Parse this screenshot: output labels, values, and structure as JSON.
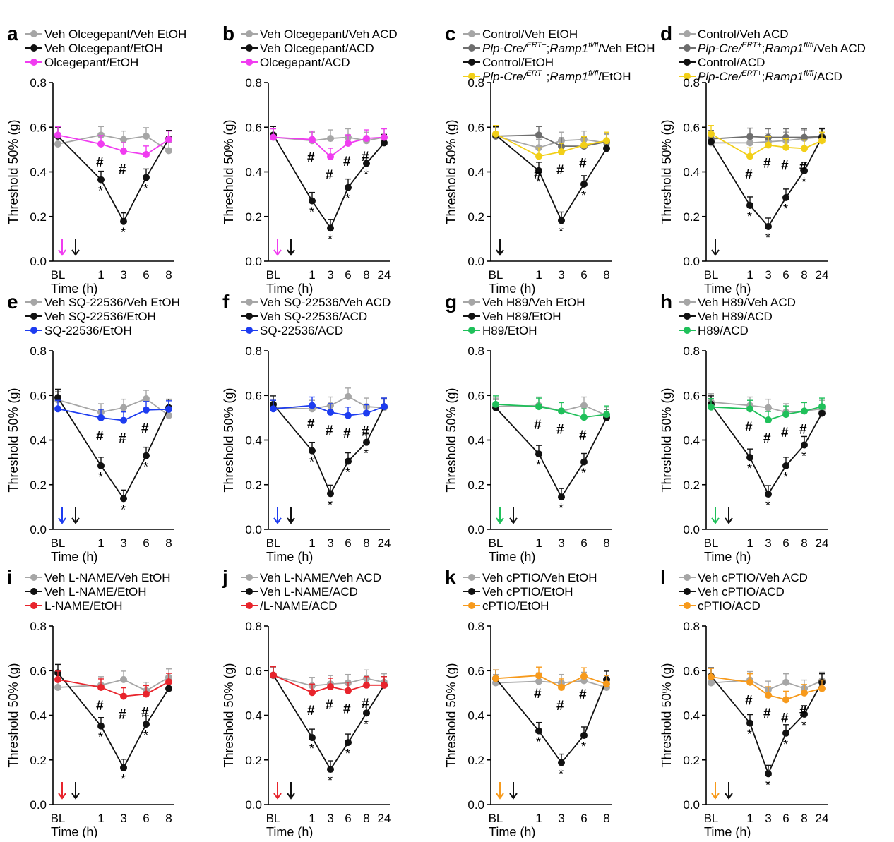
{
  "figure": {
    "ylabel": "Threshold 50% (g)",
    "xlabel": "Time (h)",
    "yticks": [
      "0.0",
      "0.2",
      "0.4",
      "0.6",
      "0.8"
    ],
    "ylim": [
      0,
      0.8
    ],
    "colors": {
      "grey": "#a6a6a6",
      "darkgrey": "#6e6e6e",
      "black": "#111111",
      "magenta": "#f03cf0",
      "yellow": "#f2cf18",
      "blue": "#1d3cf0",
      "green": "#1fc05a",
      "red": "#e8242c",
      "orange": "#f79a1c"
    }
  },
  "chart_data": [
    {
      "type": "line",
      "panel": "a",
      "categories": [
        "BL",
        "1",
        "3",
        "6",
        "8"
      ],
      "arrows": [
        "magenta",
        "black"
      ],
      "series": [
        {
          "name": "Veh Olcegepant/Veh EtOH",
          "color": "grey",
          "values": [
            0.525,
            0.565,
            0.545,
            0.56,
            0.495
          ]
        },
        {
          "name": "Veh Olcegepant/EtOH",
          "color": "black",
          "values": [
            0.56,
            0.365,
            0.178,
            0.375,
            0.548
          ]
        },
        {
          "name": "Olcegepant/EtOH",
          "color": "magenta",
          "values": [
            0.565,
            0.525,
            0.493,
            0.478,
            0.545
          ]
        }
      ],
      "hash": [
        1,
        2
      ],
      "star": [
        1,
        2,
        3
      ]
    },
    {
      "type": "line",
      "panel": "b",
      "categories": [
        "BL",
        "1",
        "3",
        "6",
        "8",
        "24"
      ],
      "arrows": [
        "magenta",
        "black"
      ],
      "series": [
        {
          "name": "Veh Olcegepant/Veh ACD",
          "color": "grey",
          "values": [
            0.555,
            0.54,
            0.55,
            0.555,
            0.54,
            0.555
          ]
        },
        {
          "name": "Veh Olcegepant/ACD",
          "color": "black",
          "values": [
            0.565,
            0.27,
            0.148,
            0.33,
            0.438,
            0.53
          ]
        },
        {
          "name": "Olcegepant/ACD",
          "color": "magenta",
          "values": [
            0.555,
            0.545,
            0.468,
            0.528,
            0.55,
            0.555
          ]
        }
      ],
      "hash": [
        1,
        2,
        3,
        4
      ],
      "star": [
        1,
        2,
        3,
        4
      ]
    },
    {
      "type": "line",
      "panel": "c",
      "categories": [
        "BL",
        "1",
        "3",
        "6",
        "8"
      ],
      "arrows": [
        "black"
      ],
      "series": [
        {
          "name": "Control/Veh EtOH",
          "color": "grey",
          "values": [
            0.56,
            0.508,
            0.54,
            0.545,
            0.53
          ]
        },
        {
          "name": "Plp-Cre/ERT+;Ramp1fl/fl/Veh EtOH",
          "color": "darkgrey",
          "values": [
            0.56,
            0.565,
            0.515,
            0.515,
            0.535
          ],
          "label": {
            "pre": "",
            "it1": "Plp-Cre/",
            "sup1": "ERT+",
            "mid": ";",
            "it2": "Ramp1",
            "sup2": "fl/fl",
            "post": "/Veh EtOH"
          }
        },
        {
          "name": "Control/EtOH",
          "color": "black",
          "values": [
            0.565,
            0.405,
            0.182,
            0.345,
            0.505
          ]
        },
        {
          "name": "Plp-Cre/ERT+;Ramp1fl/fl/EtOH",
          "color": "yellow",
          "values": [
            0.57,
            0.47,
            0.49,
            0.52,
            0.54
          ],
          "label": {
            "pre": "",
            "it1": "Plp-Cre/",
            "sup1": "ERT+",
            "mid": ";",
            "it2": "Ramp1",
            "sup2": "fl/fl",
            "post": "/EtOH"
          }
        }
      ],
      "hash": [
        1,
        2,
        3
      ],
      "star": [
        1,
        2,
        3
      ]
    },
    {
      "type": "line",
      "panel": "d",
      "categories": [
        "BL",
        "1",
        "3",
        "6",
        "8",
        "24"
      ],
      "arrows": [
        "black"
      ],
      "series": [
        {
          "name": "Control/Veh ACD",
          "color": "grey",
          "values": [
            0.53,
            0.53,
            0.535,
            0.54,
            0.55,
            0.555
          ]
        },
        {
          "name": "Plp-Cre/ERT+;Ramp1fl/fl/Veh ACD",
          "color": "darkgrey",
          "values": [
            0.548,
            0.558,
            0.555,
            0.555,
            0.555,
            0.558
          ],
          "label": {
            "pre": "",
            "it1": "Plp-Cre/",
            "sup1": "ERT+",
            "mid": ";",
            "it2": "Ramp1",
            "sup2": "fl/fl",
            "post": "/Veh ACD"
          }
        },
        {
          "name": "Control/ACD",
          "color": "black",
          "values": [
            0.535,
            0.25,
            0.155,
            0.285,
            0.405,
            0.555
          ]
        },
        {
          "name": "Plp-Cre/ERT+;Ramp1fl/fl/ACD",
          "color": "yellow",
          "values": [
            0.57,
            0.47,
            0.52,
            0.51,
            0.505,
            0.54
          ],
          "label": {
            "pre": "",
            "it1": "Plp-Cre/",
            "sup1": "ERT+",
            "mid": ";",
            "it2": "Ramp1",
            "sup2": "fl/fl",
            "post": "/ACD"
          }
        }
      ],
      "hash": [
        1,
        2,
        3,
        4
      ],
      "star": [
        1,
        2,
        3,
        4
      ]
    },
    {
      "type": "line",
      "panel": "e",
      "categories": [
        "BL",
        "1",
        "3",
        "6",
        "8"
      ],
      "arrows": [
        "blue",
        "black"
      ],
      "series": [
        {
          "name": "Veh SQ-22536/Veh EtOH",
          "color": "grey",
          "values": [
            0.58,
            0.525,
            0.545,
            0.585,
            0.51
          ]
        },
        {
          "name": "Veh SQ-22536/EtOH",
          "color": "black",
          "values": [
            0.59,
            0.285,
            0.138,
            0.33,
            0.545
          ]
        },
        {
          "name": "SQ-22536/EtOH",
          "color": "blue",
          "values": [
            0.54,
            0.5,
            0.488,
            0.535,
            0.538
          ]
        }
      ],
      "hash": [
        1,
        2,
        3
      ],
      "star": [
        1,
        2,
        3
      ]
    },
    {
      "type": "line",
      "panel": "f",
      "categories": [
        "BL",
        "1",
        "3",
        "6",
        "8",
        "24"
      ],
      "arrows": [
        "blue",
        "black"
      ],
      "series": [
        {
          "name": "Veh SQ-22536/Veh ACD",
          "color": "grey",
          "values": [
            0.545,
            0.54,
            0.555,
            0.595,
            0.55,
            0.545
          ]
        },
        {
          "name": "Veh SQ-22536/ACD",
          "color": "black",
          "values": [
            0.56,
            0.352,
            0.16,
            0.305,
            0.39,
            0.55
          ]
        },
        {
          "name": "SQ-22536/ACD",
          "color": "blue",
          "values": [
            0.54,
            0.555,
            0.525,
            0.51,
            0.52,
            0.55
          ]
        }
      ],
      "hash": [
        1,
        2,
        3,
        4
      ],
      "star": [
        1,
        2,
        3,
        4
      ]
    },
    {
      "type": "line",
      "panel": "g",
      "categories": [
        "BL",
        "1",
        "3",
        "6",
        "8"
      ],
      "arrows": [
        "green",
        "black"
      ],
      "series": [
        {
          "name": "Veh H89/Veh EtOH",
          "color": "grey",
          "values": [
            0.55,
            0.555,
            0.53,
            0.555,
            0.51
          ]
        },
        {
          "name": "Veh H89/EtOH",
          "color": "black",
          "values": [
            0.545,
            0.338,
            0.145,
            0.302,
            0.5
          ]
        },
        {
          "name": "H89/EtOH",
          "color": "green",
          "values": [
            0.56,
            0.55,
            0.53,
            0.502,
            0.515
          ]
        }
      ],
      "hash": [
        1,
        2,
        3
      ],
      "star": [
        1,
        2,
        3
      ]
    },
    {
      "type": "line",
      "panel": "h",
      "categories": [
        "BL",
        "1",
        "3",
        "6",
        "8",
        "24"
      ],
      "arrows": [
        "green",
        "black"
      ],
      "series": [
        {
          "name": "Veh H89/Veh ACD",
          "color": "grey",
          "values": [
            0.57,
            0.555,
            0.545,
            0.525,
            0.53,
            0.54
          ]
        },
        {
          "name": "Veh H89/ACD",
          "color": "black",
          "values": [
            0.56,
            0.322,
            0.158,
            0.285,
            0.378,
            0.52
          ]
        },
        {
          "name": "H89/ACD",
          "color": "green",
          "values": [
            0.548,
            0.54,
            0.49,
            0.515,
            0.53,
            0.55
          ]
        }
      ],
      "hash": [
        1,
        2,
        3,
        4
      ],
      "star": [
        1,
        2,
        3,
        4
      ]
    },
    {
      "type": "line",
      "panel": "i",
      "categories": [
        "BL",
        "1",
        "3",
        "6",
        "8"
      ],
      "arrows": [
        "red",
        "black"
      ],
      "series": [
        {
          "name": "Veh L-NAME/Veh EtOH",
          "color": "grey",
          "values": [
            0.525,
            0.535,
            0.56,
            0.51,
            0.57
          ]
        },
        {
          "name": "Veh L-NAME/EtOH",
          "color": "black",
          "values": [
            0.59,
            0.352,
            0.165,
            0.36,
            0.52
          ]
        },
        {
          "name": "L-NAME/EtOH",
          "color": "red",
          "values": [
            0.56,
            0.525,
            0.485,
            0.495,
            0.55
          ]
        }
      ],
      "hash": [
        1,
        2,
        3
      ],
      "star": [
        1,
        2,
        3
      ]
    },
    {
      "type": "line",
      "panel": "j",
      "categories": [
        "BL",
        "1",
        "3",
        "6",
        "8",
        "24"
      ],
      "arrows": [
        "red",
        "black"
      ],
      "series": [
        {
          "name": "Veh L-NAME/Veh ACD",
          "color": "grey",
          "values": [
            0.578,
            0.532,
            0.54,
            0.545,
            0.565,
            0.548
          ]
        },
        {
          "name": "Veh L-NAME/ACD",
          "color": "black",
          "values": [
            0.58,
            0.3,
            0.158,
            0.278,
            0.41,
            0.535
          ]
        },
        {
          "name": "/L-NAME/ACD",
          "color": "red",
          "values": [
            0.58,
            0.502,
            0.528,
            0.51,
            0.535,
            0.535
          ]
        }
      ],
      "hash": [
        1,
        2,
        3,
        4
      ],
      "star": [
        1,
        2,
        3,
        4
      ]
    },
    {
      "type": "line",
      "panel": "k",
      "categories": [
        "BL",
        "1",
        "3",
        "6",
        "8"
      ],
      "arrows": [
        "orange",
        "black"
      ],
      "series": [
        {
          "name": "Veh cPTIO/Veh EtOH",
          "color": "grey",
          "values": [
            0.545,
            0.552,
            0.545,
            0.555,
            0.525
          ]
        },
        {
          "name": "Veh cPTIO/EtOH",
          "color": "black",
          "values": [
            0.565,
            0.33,
            0.188,
            0.31,
            0.56
          ]
        },
        {
          "name": "cPTIO/EtOH",
          "color": "orange",
          "values": [
            0.565,
            0.578,
            0.525,
            0.575,
            0.54
          ]
        }
      ],
      "hash": [
        1,
        2,
        3
      ],
      "star": [
        1,
        2,
        3
      ]
    },
    {
      "type": "line",
      "panel": "l",
      "categories": [
        "BL",
        "1",
        "3",
        "6",
        "8",
        "24"
      ],
      "arrows": [
        "orange",
        "black"
      ],
      "series": [
        {
          "name": "Veh cPTIO/Veh ACD",
          "color": "grey",
          "values": [
            0.545,
            0.558,
            0.515,
            0.548,
            0.52,
            0.555
          ]
        },
        {
          "name": "Veh cPTIO/ACD",
          "color": "black",
          "values": [
            0.575,
            0.365,
            0.138,
            0.32,
            0.405,
            0.548
          ]
        },
        {
          "name": "cPTIO/ACD",
          "color": "orange",
          "values": [
            0.572,
            0.548,
            0.49,
            0.47,
            0.5,
            0.52
          ]
        }
      ],
      "hash": [
        1,
        2,
        3,
        4
      ],
      "star": [
        1,
        2,
        3,
        4
      ]
    }
  ]
}
